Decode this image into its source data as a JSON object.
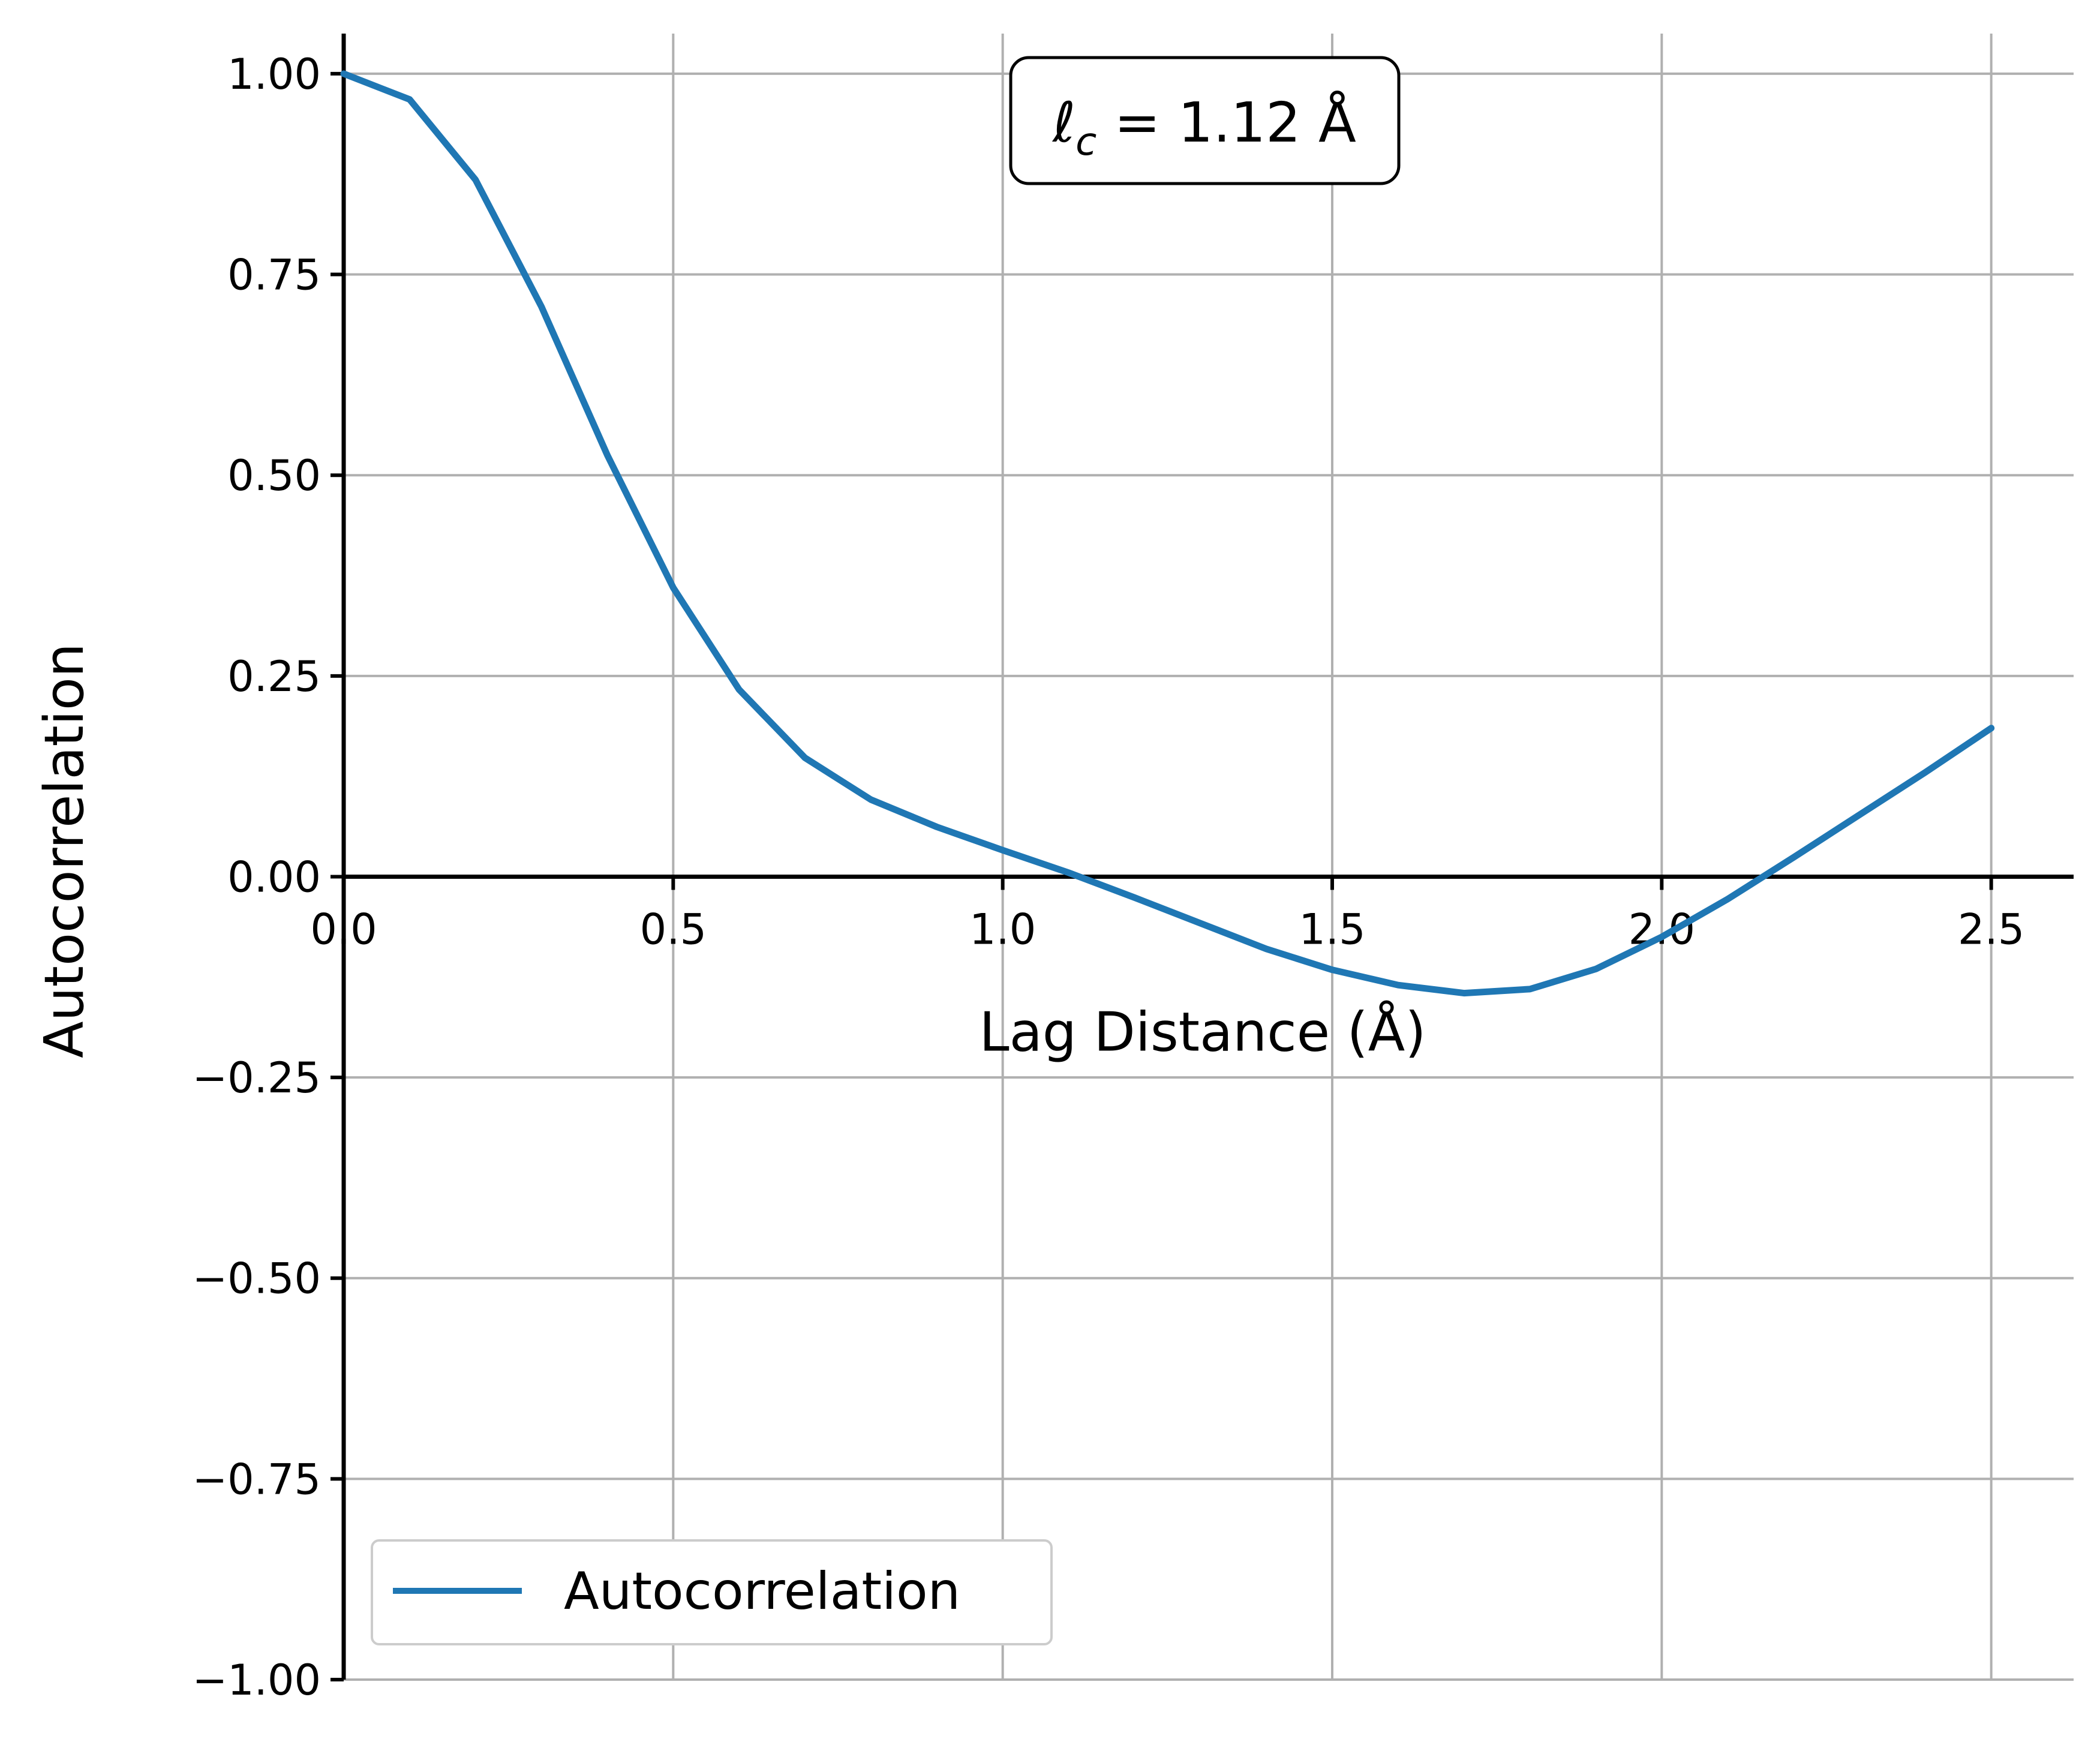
{
  "chart_data": {
    "type": "line",
    "xlabel": "Lag Distance (Å)",
    "ylabel": "Autocorrelation",
    "xlim": [
      0.0,
      2.625
    ],
    "ylim": [
      -1.0,
      1.05
    ],
    "grid": true,
    "legend_position": "lower-left",
    "annotation": {
      "symbol": "ℓ",
      "subscript": "c",
      "value_text": " = 1.12 Å"
    },
    "x_ticks": [
      "0.0",
      "0.5",
      "1.0",
      "1.5",
      "2.0",
      "2.5"
    ],
    "x_tick_values": [
      0.0,
      0.5,
      1.0,
      1.5,
      2.0,
      2.5
    ],
    "y_ticks": [
      "1.00",
      "0.75",
      "0.50",
      "0.25",
      "0.00",
      "−0.25",
      "−0.50",
      "−0.75",
      "−1.00"
    ],
    "y_tick_values": [
      1.0,
      0.75,
      0.5,
      0.25,
      0.0,
      -0.25,
      -0.5,
      -0.75,
      -1.0
    ],
    "series": [
      {
        "name": "Autocorrelation",
        "color": "#1f77b4",
        "x": [
          0.0,
          0.1,
          0.2,
          0.3,
          0.4,
          0.5,
          0.6,
          0.7,
          0.8,
          0.9,
          1.0,
          1.1,
          1.2,
          1.3,
          1.4,
          1.5,
          1.6,
          1.7,
          1.8,
          1.9,
          2.0,
          2.1,
          2.2,
          2.3,
          2.4,
          2.5
        ],
        "y": [
          1.0,
          0.968,
          0.868,
          0.71,
          0.525,
          0.36,
          0.233,
          0.148,
          0.096,
          0.062,
          0.033,
          0.005,
          -0.026,
          -0.058,
          -0.09,
          -0.116,
          -0.135,
          -0.145,
          -0.14,
          -0.115,
          -0.075,
          -0.028,
          0.024,
          0.077,
          0.13,
          0.185
        ]
      }
    ]
  }
}
